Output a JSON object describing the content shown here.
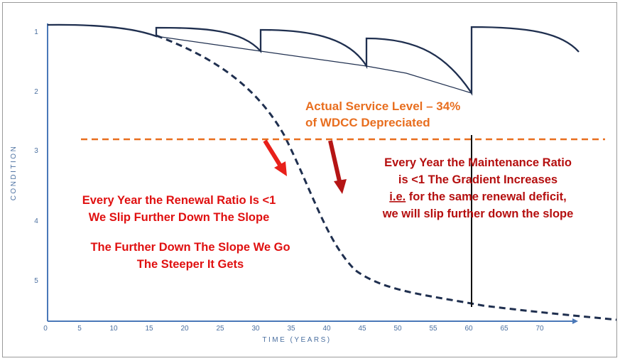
{
  "axes": {
    "x_label": "TIME (YEARS)",
    "y_label": "CONDITION",
    "x_ticks": [
      "0",
      "5",
      "10",
      "15",
      "20",
      "25",
      "30",
      "35",
      "40",
      "45",
      "50",
      "55",
      "60",
      "65",
      "70"
    ],
    "y_ticks": [
      "1",
      "2",
      "3",
      "4",
      "5"
    ]
  },
  "service_level": {
    "line1": "Actual Service Level – 34%",
    "line2": "of WDCC Depreciated"
  },
  "renewal": {
    "line1": "Every Year the Renewal Ratio Is <1",
    "line2": "We Slip Further Down The Slope"
  },
  "further": {
    "line1": "The Further Down The Slope We Go",
    "line2": "The Steeper It Gets"
  },
  "maintenance": {
    "line1": "Every Year the Maintenance Ratio",
    "line2": "is <1 The Gradient Increases",
    "line3_ie": "i.e.",
    "line3_rest": " for the same renewal deficit,",
    "line4": "we will slip further down the slope"
  },
  "colors": {
    "axis": "#4a78b8",
    "curve": "#1f2f4f",
    "dashed_level": "#e86e1f",
    "red_text": "#e01010",
    "dark_red_text": "#b50f0f",
    "arrow_light": "#e8201a",
    "arrow_dark": "#b51515"
  }
}
